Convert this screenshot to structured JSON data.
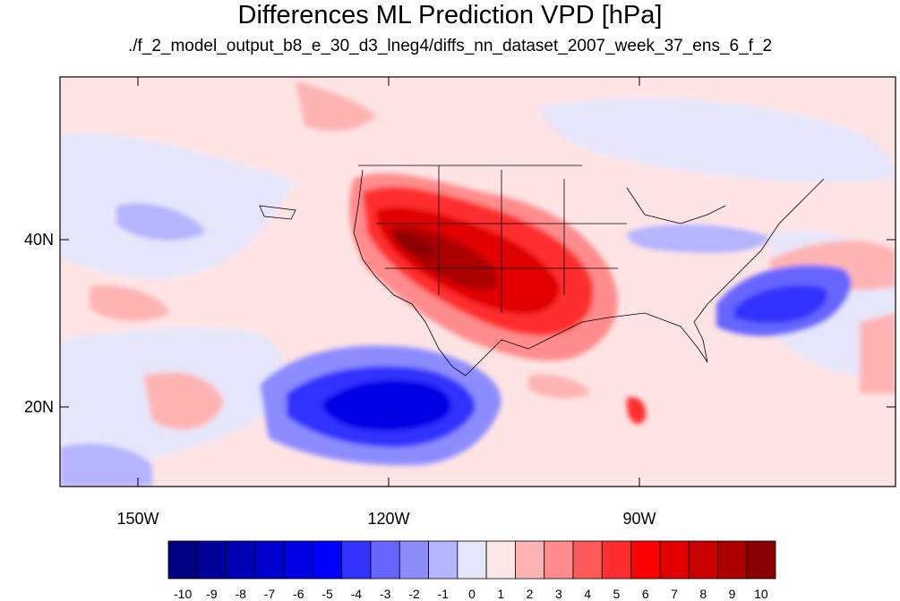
{
  "title": "Differences ML Prediction VPD [hPa]",
  "subtitle": "./f_2_model_output_b8_e_30_d3_lneg4/diffs_nn_dataset_2007_week_37_ens_6_f_2",
  "axes": {
    "lat_labels": [
      "40N",
      "20N"
    ],
    "lon_labels": [
      "150W",
      "120W",
      "90W"
    ]
  },
  "colorbar": {
    "labels": [
      "-10",
      "-9",
      "-8",
      "-7",
      "-6",
      "-5",
      "-4",
      "-3",
      "-2",
      "-1",
      "0",
      "1",
      "2",
      "3",
      "4",
      "5",
      "6",
      "7",
      "8",
      "9",
      "10"
    ],
    "colors": [
      "#000080",
      "#00009a",
      "#0000b4",
      "#0000cc",
      "#0000e4",
      "#0000ff",
      "#3333ff",
      "#6666ff",
      "#8c8cff",
      "#b4b4ff",
      "#e6e6fa",
      "#ffe6e6",
      "#ffb4b4",
      "#ff8c8c",
      "#ff5a5a",
      "#ff2d2d",
      "#ff0000",
      "#e00000",
      "#c80000",
      "#ac0000",
      "#8a0000"
    ]
  },
  "colors": {
    "background_field": "#ffe4e4",
    "ocean_negative_light": "#e6e6fa",
    "strong_positive": "#b00000",
    "strong_negative": "#0000e0"
  }
}
